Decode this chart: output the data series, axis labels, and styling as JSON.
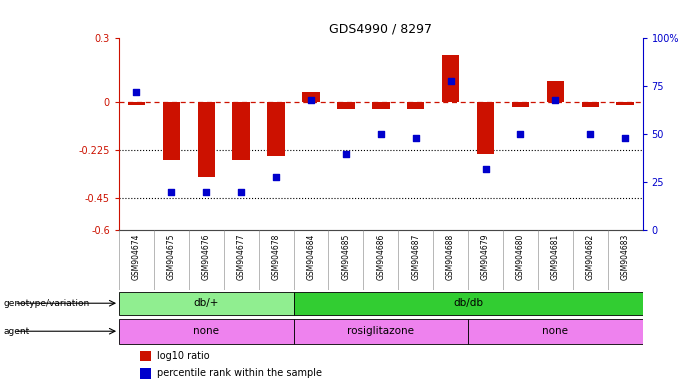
{
  "title": "GDS4990 / 8297",
  "samples": [
    "GSM904674",
    "GSM904675",
    "GSM904676",
    "GSM904677",
    "GSM904678",
    "GSM904684",
    "GSM904685",
    "GSM904686",
    "GSM904687",
    "GSM904688",
    "GSM904679",
    "GSM904680",
    "GSM904681",
    "GSM904682",
    "GSM904683"
  ],
  "log10_ratio": [
    -0.01,
    -0.27,
    -0.35,
    -0.27,
    -0.25,
    0.05,
    -0.03,
    -0.03,
    -0.03,
    0.22,
    -0.24,
    -0.02,
    0.1,
    -0.02,
    -0.01
  ],
  "percentile": [
    72,
    20,
    20,
    20,
    28,
    68,
    40,
    50,
    48,
    78,
    32,
    50,
    68,
    50,
    48
  ],
  "left_ylim": [
    -0.6,
    0.3
  ],
  "right_ylim": [
    0,
    100
  ],
  "left_yticks": [
    -0.6,
    -0.45,
    -0.225,
    0,
    0.3
  ],
  "left_yticklabels": [
    "-0.6",
    "-0.45",
    "-0.225",
    "0",
    "0.3"
  ],
  "right_yticks": [
    0,
    25,
    50,
    75,
    100
  ],
  "right_yticklabels": [
    "0",
    "25",
    "50",
    "75",
    "100%"
  ],
  "dotted_lines": [
    -0.225,
    -0.45
  ],
  "genotype_groups": [
    {
      "label": "db/+",
      "start": 0,
      "end": 5,
      "color": "#90EE90"
    },
    {
      "label": "db/db",
      "start": 5,
      "end": 15,
      "color": "#32CD32"
    }
  ],
  "agent_groups": [
    {
      "label": "none",
      "start": 0,
      "end": 5,
      "color": "#EE82EE"
    },
    {
      "label": "rosiglitazone",
      "start": 5,
      "end": 10,
      "color": "#EE82EE"
    },
    {
      "label": "none",
      "start": 10,
      "end": 15,
      "color": "#EE82EE"
    }
  ],
  "bar_color": "#CC1100",
  "dot_color": "#0000CC",
  "background_color": "#ffffff",
  "legend_items": [
    {
      "color": "#CC1100",
      "label": "log10 ratio"
    },
    {
      "color": "#0000CC",
      "label": "percentile rank within the sample"
    }
  ]
}
